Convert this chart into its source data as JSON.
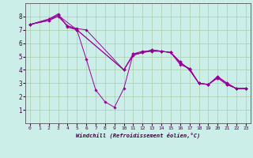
{
  "xlabel": "Windchill (Refroidissement éolien,°C)",
  "bg_color": "#cceee8",
  "grid_color": "#aaccaa",
  "line_color": "#990099",
  "xlim": [
    -0.5,
    23.5
  ],
  "ylim": [
    0,
    9
  ],
  "xticks": [
    0,
    1,
    2,
    3,
    4,
    5,
    6,
    7,
    8,
    9,
    10,
    11,
    12,
    13,
    14,
    15,
    16,
    17,
    18,
    19,
    20,
    21,
    22,
    23
  ],
  "yticks": [
    1,
    2,
    3,
    4,
    5,
    6,
    7,
    8
  ],
  "series": [
    {
      "x": [
        0,
        2,
        3,
        4,
        5,
        6,
        7,
        8,
        9,
        10,
        11,
        12,
        13,
        14,
        15,
        16,
        17,
        18,
        19,
        20,
        21,
        22,
        23
      ],
      "y": [
        7.4,
        7.8,
        8.2,
        7.2,
        7.0,
        4.8,
        2.5,
        1.6,
        1.2,
        2.6,
        5.2,
        5.3,
        5.4,
        5.4,
        5.3,
        4.4,
        4.1,
        3.0,
        2.9,
        3.4,
        2.9,
        2.6,
        2.6
      ]
    },
    {
      "x": [
        0,
        2,
        3,
        4,
        5,
        6,
        10,
        11,
        12,
        13,
        14,
        15,
        16,
        17,
        18,
        19,
        20,
        21,
        22,
        23
      ],
      "y": [
        7.4,
        7.7,
        8.1,
        7.3,
        7.1,
        7.0,
        4.0,
        5.1,
        5.3,
        5.5,
        5.4,
        5.3,
        4.6,
        4.0,
        3.0,
        2.9,
        3.5,
        3.0,
        2.6,
        2.6
      ]
    },
    {
      "x": [
        0,
        2,
        3,
        4,
        5,
        10,
        11,
        12,
        13,
        14,
        15,
        16,
        17,
        18,
        19,
        20,
        21,
        22,
        23
      ],
      "y": [
        7.4,
        7.7,
        8.0,
        7.3,
        7.0,
        4.0,
        5.2,
        5.4,
        5.4,
        5.4,
        5.3,
        4.5,
        4.1,
        3.0,
        2.9,
        3.5,
        3.0,
        2.6,
        2.6
      ]
    },
    {
      "x": [
        0,
        2,
        3,
        5,
        10,
        11,
        12,
        13,
        14,
        15,
        16,
        17,
        18,
        19,
        20,
        21,
        22,
        23
      ],
      "y": [
        7.4,
        7.8,
        8.1,
        7.0,
        4.0,
        5.1,
        5.3,
        5.5,
        5.4,
        5.3,
        4.6,
        4.0,
        3.0,
        2.9,
        3.4,
        2.9,
        2.6,
        2.6
      ]
    }
  ]
}
